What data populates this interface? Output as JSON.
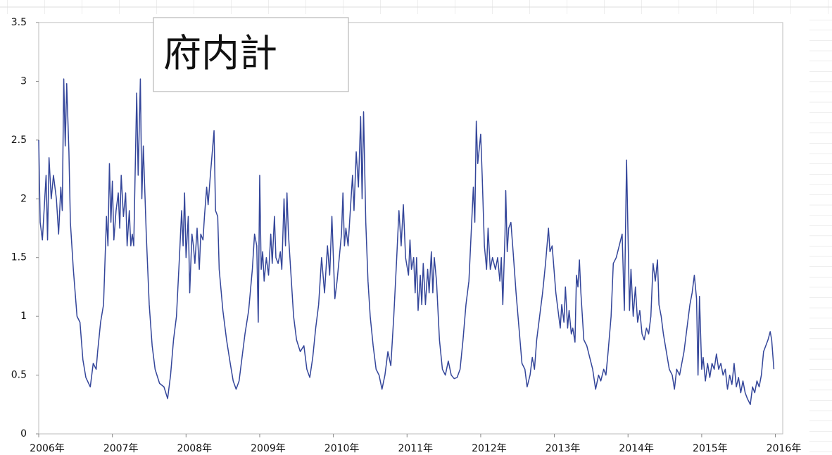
{
  "chart_data": {
    "type": "line",
    "title": "府内計",
    "xlim": [
      2006,
      2016.1
    ],
    "ylim": [
      0,
      3.5
    ],
    "xticks": [
      {
        "value": 2006,
        "label": "2006年"
      },
      {
        "value": 2007,
        "label": "2007年"
      },
      {
        "value": 2008,
        "label": "2008年"
      },
      {
        "value": 2009,
        "label": "2009年"
      },
      {
        "value": 2010,
        "label": "2010年"
      },
      {
        "value": 2011,
        "label": "2011年"
      },
      {
        "value": 2012,
        "label": "2012年"
      },
      {
        "value": 2013,
        "label": "2013年"
      },
      {
        "value": 2014,
        "label": "2014年"
      },
      {
        "value": 2015,
        "label": "2015年"
      },
      {
        "value": 2016,
        "label": "2016年"
      }
    ],
    "yticks": [
      0,
      0.5,
      1,
      1.5,
      2,
      2.5,
      3,
      3.5
    ],
    "grid": false,
    "x": [
      2006.0,
      2006.02,
      2006.05,
      2006.1,
      2006.12,
      2006.14,
      2006.17,
      2006.2,
      2006.24,
      2006.27,
      2006.3,
      2006.32,
      2006.34,
      2006.36,
      2006.38,
      2006.41,
      2006.43,
      2006.47,
      2006.52,
      2006.56,
      2006.6,
      2006.64,
      2006.7,
      2006.74,
      2006.78,
      2006.8,
      2006.84,
      2006.88,
      2006.92,
      2006.94,
      2006.96,
      2006.98,
      2007.0,
      2007.02,
      2007.05,
      2007.08,
      2007.1,
      2007.12,
      2007.15,
      2007.18,
      2007.2,
      2007.23,
      2007.25,
      2007.27,
      2007.29,
      2007.33,
      2007.35,
      2007.38,
      2007.4,
      2007.42,
      2007.46,
      2007.5,
      2007.54,
      2007.58,
      2007.64,
      2007.7,
      2007.75,
      2007.79,
      2007.83,
      2007.87,
      2007.91,
      2007.94,
      2007.96,
      2007.98,
      2008.0,
      2008.03,
      2008.05,
      2008.08,
      2008.1,
      2008.12,
      2008.15,
      2008.18,
      2008.2,
      2008.23,
      2008.25,
      2008.28,
      2008.3,
      2008.33,
      2008.38,
      2008.4,
      2008.43,
      2008.45,
      2008.5,
      2008.55,
      2008.6,
      2008.64,
      2008.68,
      2008.72,
      2008.75,
      2008.8,
      2008.85,
      2008.9,
      2008.93,
      2008.96,
      2008.98,
      2009.0,
      2009.02,
      2009.04,
      2009.06,
      2009.09,
      2009.12,
      2009.15,
      2009.17,
      2009.2,
      2009.22,
      2009.25,
      2009.28,
      2009.3,
      2009.33,
      2009.35,
      2009.37,
      2009.39,
      2009.42,
      2009.46,
      2009.5,
      2009.55,
      2009.6,
      2009.64,
      2009.68,
      2009.72,
      2009.76,
      2009.8,
      2009.84,
      2009.88,
      2009.92,
      2009.95,
      2009.98,
      2010.02,
      2010.05,
      2010.08,
      2010.11,
      2010.13,
      2010.15,
      2010.17,
      2010.2,
      2010.23,
      2010.26,
      2010.28,
      2010.31,
      2010.34,
      2010.37,
      2010.39,
      2010.41,
      2010.44,
      2010.47,
      2010.5,
      2010.54,
      2010.58,
      2010.62,
      2010.66,
      2010.7,
      2010.74,
      2010.78,
      2010.82,
      2010.86,
      2010.89,
      2010.92,
      2010.95,
      2010.98,
      2011.02,
      2011.04,
      2011.06,
      2011.09,
      2011.11,
      2011.13,
      2011.15,
      2011.18,
      2011.2,
      2011.22,
      2011.25,
      2011.28,
      2011.3,
      2011.33,
      2011.35,
      2011.37,
      2011.4,
      2011.44,
      2011.48,
      2011.52,
      2011.56,
      2011.6,
      2011.64,
      2011.68,
      2011.72,
      2011.76,
      2011.8,
      2011.84,
      2011.87,
      2011.9,
      2011.92,
      2011.94,
      2011.96,
      2012.0,
      2012.02,
      2012.05,
      2012.08,
      2012.1,
      2012.13,
      2012.16,
      2012.2,
      2012.23,
      2012.26,
      2012.28,
      2012.3,
      2012.33,
      2012.34,
      2012.36,
      2012.38,
      2012.41,
      2012.44,
      2012.48,
      2012.52,
      2012.56,
      2012.6,
      2012.63,
      2012.67,
      2012.7,
      2012.73,
      2012.76,
      2012.8,
      2012.84,
      2012.88,
      2012.92,
      2012.94,
      2012.97,
      2013.02,
      2013.05,
      2013.08,
      2013.1,
      2013.13,
      2013.15,
      2013.18,
      2013.2,
      2013.23,
      2013.25,
      2013.28,
      2013.3,
      2013.32,
      2013.34,
      2013.36,
      2013.4,
      2013.44,
      2013.48,
      2013.52,
      2013.56,
      2013.6,
      2013.63,
      2013.67,
      2013.7,
      2013.73,
      2013.77,
      2013.8,
      2013.84,
      2013.88,
      2013.92,
      2013.95,
      2013.98,
      2014.02,
      2014.04,
      2014.07,
      2014.1,
      2014.13,
      2014.16,
      2014.19,
      2014.22,
      2014.25,
      2014.28,
      2014.31,
      2014.34,
      2014.37,
      2014.4,
      2014.42,
      2014.45,
      2014.48,
      2014.52,
      2014.56,
      2014.6,
      2014.63,
      2014.66,
      2014.7,
      2014.73,
      2014.76,
      2014.8,
      2014.84,
      2014.87,
      2014.9,
      2014.93,
      2014.95,
      2014.97,
      2015.0,
      2015.02,
      2015.05,
      2015.08,
      2015.11,
      2015.14,
      2015.17,
      2015.2,
      2015.23,
      2015.26,
      2015.29,
      2015.32,
      2015.35,
      2015.38,
      2015.41,
      2015.44,
      2015.47,
      2015.5,
      2015.53,
      2015.56,
      2015.59,
      2015.62,
      2015.66,
      2015.69,
      2015.72,
      2015.75,
      2015.78,
      2015.81,
      2015.84,
      2015.87,
      2015.9,
      2015.93,
      2015.95,
      2015.98
    ],
    "series": [
      {
        "color": "#34469a",
        "values": [
          2.5,
          1.8,
          1.65,
          2.2,
          1.65,
          2.35,
          2.0,
          2.2,
          2.0,
          1.7,
          2.1,
          1.9,
          3.02,
          2.45,
          2.98,
          2.4,
          1.8,
          1.4,
          1.0,
          0.95,
          0.63,
          0.48,
          0.4,
          0.6,
          0.55,
          0.7,
          0.95,
          1.1,
          1.85,
          1.6,
          2.3,
          1.8,
          2.15,
          1.65,
          1.9,
          2.05,
          1.75,
          2.2,
          1.85,
          2.05,
          1.6,
          1.9,
          1.6,
          1.7,
          1.6,
          2.9,
          2.2,
          3.02,
          2.0,
          2.45,
          1.7,
          1.1,
          0.75,
          0.55,
          0.43,
          0.4,
          0.3,
          0.5,
          0.8,
          1.0,
          1.5,
          1.9,
          1.6,
          2.05,
          1.5,
          1.85,
          1.2,
          1.7,
          1.6,
          1.45,
          1.75,
          1.4,
          1.7,
          1.65,
          1.85,
          2.1,
          1.95,
          2.2,
          2.58,
          1.9,
          1.85,
          1.4,
          1.05,
          0.8,
          0.6,
          0.45,
          0.38,
          0.45,
          0.6,
          0.85,
          1.05,
          1.4,
          1.7,
          1.6,
          0.95,
          2.2,
          1.4,
          1.55,
          1.3,
          1.5,
          1.35,
          1.7,
          1.45,
          1.85,
          1.5,
          1.45,
          1.55,
          1.4,
          2.0,
          1.6,
          2.05,
          1.7,
          1.4,
          1.0,
          0.8,
          0.7,
          0.75,
          0.55,
          0.48,
          0.65,
          0.9,
          1.1,
          1.5,
          1.2,
          1.6,
          1.35,
          1.85,
          1.15,
          1.3,
          1.5,
          1.7,
          2.05,
          1.6,
          1.75,
          1.6,
          1.9,
          2.2,
          1.9,
          2.4,
          2.1,
          2.7,
          2.0,
          2.74,
          1.8,
          1.3,
          1.0,
          0.75,
          0.55,
          0.5,
          0.38,
          0.5,
          0.7,
          0.58,
          1.0,
          1.5,
          1.9,
          1.6,
          1.95,
          1.5,
          1.35,
          1.65,
          1.4,
          1.5,
          1.2,
          1.5,
          1.05,
          1.35,
          1.1,
          1.45,
          1.1,
          1.4,
          1.2,
          1.55,
          1.2,
          1.5,
          1.3,
          0.8,
          0.55,
          0.5,
          0.62,
          0.5,
          0.47,
          0.48,
          0.55,
          0.8,
          1.1,
          1.3,
          1.7,
          2.1,
          1.8,
          2.66,
          2.3,
          2.55,
          2.2,
          1.6,
          1.4,
          1.75,
          1.4,
          1.5,
          1.4,
          1.5,
          1.3,
          1.5,
          1.1,
          1.7,
          2.07,
          1.55,
          1.75,
          1.8,
          1.55,
          1.2,
          0.9,
          0.6,
          0.55,
          0.4,
          0.5,
          0.65,
          0.55,
          0.8,
          1.0,
          1.2,
          1.45,
          1.75,
          1.55,
          1.6,
          1.2,
          1.05,
          0.9,
          1.1,
          0.95,
          1.25,
          0.9,
          1.05,
          0.85,
          0.9,
          0.78,
          1.35,
          1.25,
          1.48,
          1.2,
          0.8,
          0.75,
          0.65,
          0.55,
          0.38,
          0.5,
          0.45,
          0.55,
          0.5,
          0.7,
          1.0,
          1.45,
          1.5,
          1.6,
          1.7,
          1.05,
          2.33,
          1.05,
          1.4,
          1.0,
          1.25,
          0.95,
          1.05,
          0.85,
          0.8,
          0.9,
          0.85,
          1.0,
          1.45,
          1.3,
          1.48,
          1.1,
          1.0,
          0.85,
          0.7,
          0.55,
          0.5,
          0.38,
          0.55,
          0.5,
          0.6,
          0.7,
          0.9,
          1.1,
          1.2,
          1.35,
          1.15,
          0.5,
          1.17,
          0.55,
          0.65,
          0.45,
          0.6,
          0.48,
          0.6,
          0.55,
          0.68,
          0.55,
          0.6,
          0.5,
          0.55,
          0.38,
          0.5,
          0.42,
          0.6,
          0.4,
          0.48,
          0.35,
          0.45,
          0.35,
          0.3,
          0.25,
          0.4,
          0.35,
          0.45,
          0.4,
          0.5,
          0.7,
          0.75,
          0.8,
          0.87,
          0.8,
          0.55
        ]
      }
    ]
  }
}
